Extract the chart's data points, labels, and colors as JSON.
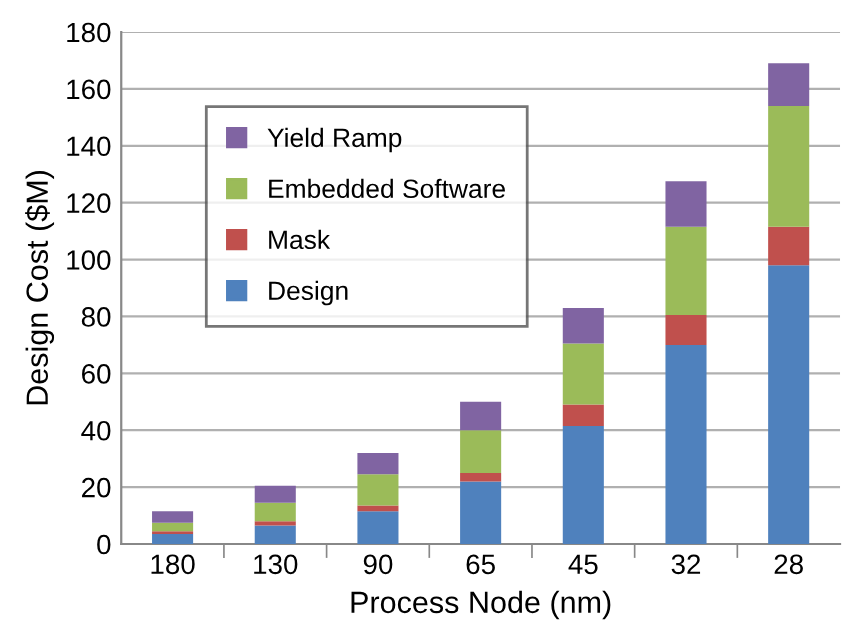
{
  "chart_data": {
    "type": "bar",
    "stacked": true,
    "xlabel": "Process Node (nm)",
    "ylabel": "Design Cost ($M)",
    "categories": [
      "180",
      "130",
      "90",
      "65",
      "45",
      "32",
      "28"
    ],
    "series": [
      {
        "name": "Design",
        "color": "#4f81bd",
        "values": [
          3.5,
          6.5,
          11.5,
          22,
          41.5,
          70,
          98
        ]
      },
      {
        "name": "Mask",
        "color": "#c0504d",
        "values": [
          1,
          1.5,
          2,
          3,
          7.5,
          10.5,
          13.5
        ]
      },
      {
        "name": "Embedded Software",
        "color": "#9bbb59",
        "values": [
          3,
          6.5,
          11,
          15,
          21.5,
          31,
          42.5
        ]
      },
      {
        "name": "Yield Ramp",
        "color": "#8064a2",
        "values": [
          4,
          6,
          7.5,
          10,
          12.5,
          16,
          15
        ]
      }
    ],
    "ylim": [
      0,
      180
    ],
    "yticks": [
      0,
      20,
      40,
      60,
      80,
      100,
      120,
      140,
      160,
      180
    ],
    "grid": "y",
    "legend": "top left"
  }
}
